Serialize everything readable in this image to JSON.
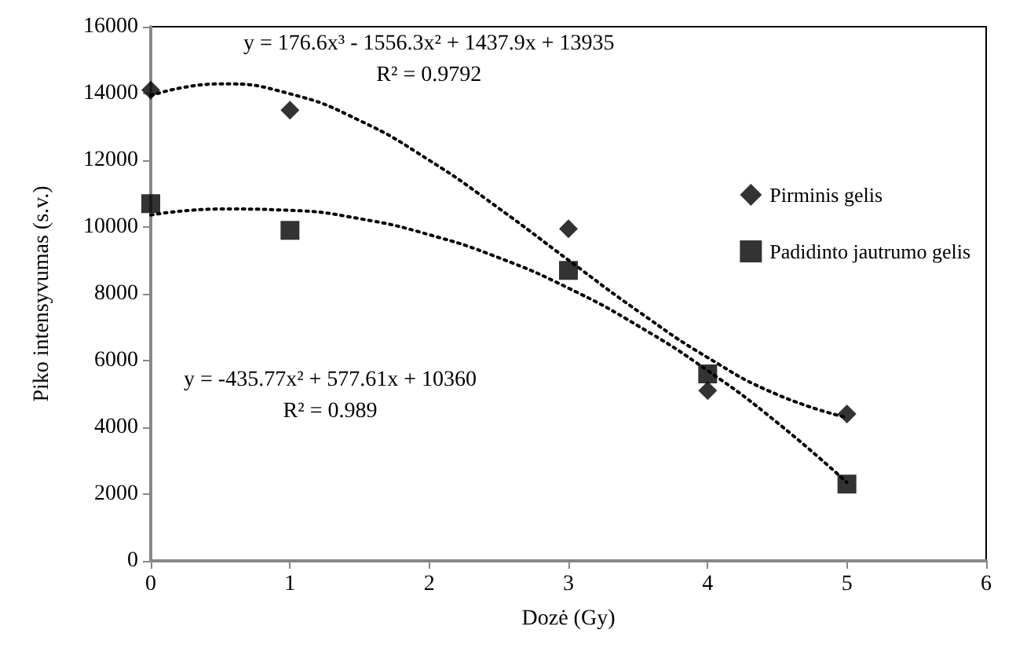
{
  "chart_data": {
    "type": "scatter",
    "xlabel": "Dozė (Gy)",
    "ylabel": "Piko intensyvumas (s.v.)",
    "xlim": [
      0,
      6
    ],
    "xticks": [
      0,
      1,
      2,
      3,
      4,
      5,
      6
    ],
    "ylim": [
      0,
      16000
    ],
    "yticks": [
      0,
      2000,
      4000,
      6000,
      8000,
      10000,
      12000,
      14000,
      16000
    ],
    "grid": false,
    "legend": "right",
    "annotations": [
      "y = 176.6x³ - 1556.3x² + 1437.9x + 13935\nR² = 0.9792",
      "y = -435.77x² + 577.61x + 10360\nR² = 0.989"
    ],
    "series": [
      {
        "name": "Pirminis gelis",
        "marker": "diamond",
        "color": "#000000",
        "x": [
          0,
          1,
          3,
          4,
          5
        ],
        "values": [
          14100,
          13500,
          9950,
          5100,
          4400
        ]
      },
      {
        "name": "Padidinto jautrumo gelis",
        "marker": "square",
        "color": "#000000",
        "x": [
          0,
          1,
          3,
          4,
          5
        ],
        "values": [
          10700,
          9900,
          8700,
          5600,
          2300
        ]
      },
      {
        "type": "line",
        "line_style": "dotted",
        "marker": "none",
        "color": "#000000",
        "x": [
          0,
          0.5,
          1,
          1.5,
          2,
          2.5,
          3,
          3.5,
          4,
          4.5,
          5
        ],
        "values": [
          13940,
          14290,
          13990,
          13190,
          12000,
          10560,
          9010,
          7480,
          6090,
          4980,
          4290
        ]
      },
      {
        "type": "line",
        "line_style": "dotted",
        "marker": "none",
        "color": "#000000",
        "x": [
          0,
          0.5,
          1,
          1.5,
          2,
          2.5,
          3,
          3.5,
          4,
          4.5,
          5
        ],
        "values": [
          10360,
          10540,
          10500,
          10250,
          9770,
          9080,
          8170,
          7040,
          5700,
          4140,
          2350
        ]
      }
    ]
  }
}
